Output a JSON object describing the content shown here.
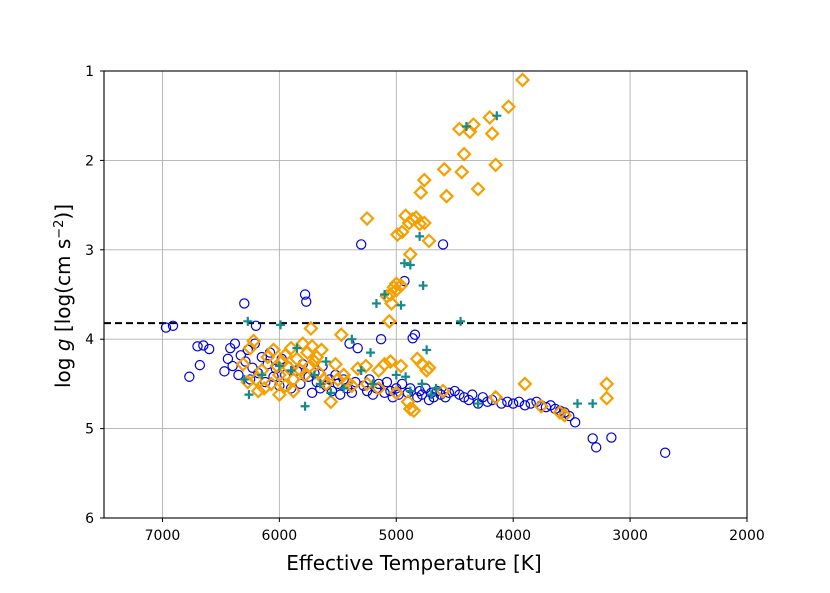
{
  "chart_data": {
    "type": "scatter",
    "xlabel": "Effective Temperature [K]",
    "ylabel": "log g [log(cm s⁻²)]",
    "ylabel_parts": {
      "prefix": "log ",
      "italic": "g",
      "unit_open": " [log(cm s",
      "sup": "−2",
      "unit_close": ")]"
    },
    "xlim": [
      7500,
      2000
    ],
    "ylim": [
      6,
      1
    ],
    "x_inverted": true,
    "y_inverted": true,
    "xticks": [
      7000,
      6000,
      5000,
      4000,
      3000,
      2000
    ],
    "yticks": [
      1,
      2,
      3,
      4,
      5,
      6
    ],
    "grid": true,
    "hline": {
      "y": 3.82,
      "style": "dashed",
      "color": "#000000"
    },
    "series": [
      {
        "name": "circles",
        "marker": "open-circle",
        "color": "#0000dd",
        "points": [
          [
            6970,
            3.87
          ],
          [
            6910,
            3.85
          ],
          [
            6770,
            4.42
          ],
          [
            6700,
            4.08
          ],
          [
            6680,
            4.29
          ],
          [
            6650,
            4.07
          ],
          [
            6600,
            4.11
          ],
          [
            6470,
            4.36
          ],
          [
            6440,
            4.22
          ],
          [
            6420,
            4.1
          ],
          [
            6400,
            4.3
          ],
          [
            6380,
            4.05
          ],
          [
            6350,
            4.4
          ],
          [
            6330,
            4.18
          ],
          [
            6300,
            3.6
          ],
          [
            6290,
            4.25
          ],
          [
            6270,
            4.12
          ],
          [
            6250,
            4.45
          ],
          [
            6230,
            4.32
          ],
          [
            6210,
            4.05
          ],
          [
            6200,
            3.85
          ],
          [
            6180,
            4.38
          ],
          [
            6150,
            4.2
          ],
          [
            6120,
            4.48
          ],
          [
            6100,
            4.28
          ],
          [
            6080,
            4.15
          ],
          [
            6050,
            4.42
          ],
          [
            6030,
            4.33
          ],
          [
            6000,
            4.52
          ],
          [
            5980,
            4.22
          ],
          [
            5950,
            4.4
          ],
          [
            5930,
            4.3
          ],
          [
            5900,
            4.55
          ],
          [
            5880,
            4.45
          ],
          [
            5850,
            4.35
          ],
          [
            5820,
            4.5
          ],
          [
            5800,
            4.28
          ],
          [
            5780,
            3.5
          ],
          [
            5770,
            3.58
          ],
          [
            5750,
            4.42
          ],
          [
            5720,
            4.6
          ],
          [
            5700,
            4.38
          ],
          [
            5680,
            4.48
          ],
          [
            5650,
            4.55
          ],
          [
            5630,
            4.3
          ],
          [
            5600,
            4.52
          ],
          [
            5570,
            4.45
          ],
          [
            5550,
            4.58
          ],
          [
            5520,
            4.4
          ],
          [
            5500,
            4.5
          ],
          [
            5480,
            4.62
          ],
          [
            5450,
            4.45
          ],
          [
            5420,
            4.55
          ],
          [
            5400,
            4.05
          ],
          [
            5380,
            4.6
          ],
          [
            5350,
            4.48
          ],
          [
            5330,
            4.1
          ],
          [
            5300,
            2.94
          ],
          [
            5280,
            4.52
          ],
          [
            5250,
            4.58
          ],
          [
            5230,
            4.45
          ],
          [
            5200,
            4.62
          ],
          [
            5170,
            4.55
          ],
          [
            5150,
            4.5
          ],
          [
            5130,
            4.0
          ],
          [
            5100,
            4.6
          ],
          [
            5080,
            4.48
          ],
          [
            5050,
            4.58
          ],
          [
            5030,
            4.65
          ],
          [
            5000,
            4.55
          ],
          [
            4980,
            4.62
          ],
          [
            4950,
            4.5
          ],
          [
            4930,
            3.35
          ],
          [
            4900,
            4.6
          ],
          [
            4880,
            4.55
          ],
          [
            4860,
            3.99
          ],
          [
            4840,
            3.95
          ],
          [
            4820,
            4.65
          ],
          [
            4800,
            4.58
          ],
          [
            4780,
            4.62
          ],
          [
            4750,
            4.55
          ],
          [
            4720,
            4.68
          ],
          [
            4700,
            4.6
          ],
          [
            4680,
            4.65
          ],
          [
            4650,
            4.58
          ],
          [
            4620,
            4.62
          ],
          [
            4600,
            2.94
          ],
          [
            4580,
            4.65
          ],
          [
            4550,
            4.6
          ],
          [
            4500,
            4.58
          ],
          [
            4460,
            4.62
          ],
          [
            4420,
            4.65
          ],
          [
            4380,
            4.68
          ],
          [
            4350,
            4.62
          ],
          [
            4300,
            4.72
          ],
          [
            4260,
            4.65
          ],
          [
            4220,
            4.7
          ],
          [
            4180,
            4.68
          ],
          [
            4150,
            4.65
          ],
          [
            4100,
            4.72
          ],
          [
            4050,
            4.7
          ],
          [
            4000,
            4.72
          ],
          [
            3950,
            4.7
          ],
          [
            3900,
            4.74
          ],
          [
            3850,
            4.72
          ],
          [
            3800,
            4.7
          ],
          [
            3760,
            4.74
          ],
          [
            3720,
            4.76
          ],
          [
            3680,
            4.74
          ],
          [
            3640,
            4.78
          ],
          [
            3600,
            4.8
          ],
          [
            3560,
            4.82
          ],
          [
            3520,
            4.86
          ],
          [
            3470,
            4.93
          ],
          [
            3320,
            5.11
          ],
          [
            3290,
            5.21
          ],
          [
            3160,
            5.1
          ],
          [
            2700,
            5.27
          ]
        ]
      },
      {
        "name": "diamonds",
        "marker": "open-diamond",
        "color": "#f5a000",
        "points": [
          [
            3920,
            1.1
          ],
          [
            4040,
            1.4
          ],
          [
            4200,
            1.52
          ],
          [
            4180,
            1.7
          ],
          [
            4150,
            2.05
          ],
          [
            4340,
            1.6
          ],
          [
            4370,
            1.68
          ],
          [
            4460,
            1.65
          ],
          [
            4420,
            1.93
          ],
          [
            4300,
            2.32
          ],
          [
            4440,
            2.13
          ],
          [
            4590,
            2.1
          ],
          [
            4570,
            2.4
          ],
          [
            4760,
            2.22
          ],
          [
            4790,
            2.36
          ],
          [
            5250,
            2.65
          ],
          [
            4920,
            2.62
          ],
          [
            4890,
            2.7
          ],
          [
            4860,
            2.66
          ],
          [
            4830,
            2.64
          ],
          [
            4800,
            2.71
          ],
          [
            4760,
            2.7
          ],
          [
            4720,
            2.9
          ],
          [
            4950,
            2.8
          ],
          [
            4990,
            2.83
          ],
          [
            4880,
            3.05
          ],
          [
            4960,
            3.4
          ],
          [
            5000,
            3.45
          ],
          [
            5050,
            3.5
          ],
          [
            5080,
            3.52
          ],
          [
            5020,
            3.42
          ],
          [
            5040,
            3.6
          ],
          [
            5060,
            3.8
          ],
          [
            5000,
            3.38
          ],
          [
            5730,
            3.88
          ],
          [
            5470,
            3.95
          ],
          [
            5330,
            4.33
          ],
          [
            5260,
            4.3
          ],
          [
            5100,
            4.28
          ],
          [
            5150,
            4.35
          ],
          [
            5050,
            4.25
          ],
          [
            4960,
            4.3
          ],
          [
            4820,
            4.22
          ],
          [
            4780,
            4.28
          ],
          [
            4740,
            4.35
          ],
          [
            4720,
            4.32
          ],
          [
            5560,
            4.7
          ],
          [
            5500,
            4.45
          ],
          [
            5450,
            4.4
          ],
          [
            5420,
            4.48
          ],
          [
            5380,
            4.52
          ],
          [
            5250,
            4.5
          ],
          [
            5150,
            4.55
          ],
          [
            5000,
            4.6
          ],
          [
            4880,
            4.78
          ],
          [
            4850,
            4.8
          ],
          [
            4900,
            4.7
          ],
          [
            4600,
            4.58
          ],
          [
            4150,
            4.65
          ],
          [
            3900,
            4.5
          ],
          [
            3760,
            4.75
          ],
          [
            3600,
            4.82
          ],
          [
            3560,
            4.85
          ],
          [
            3200,
            4.5
          ],
          [
            3200,
            4.66
          ],
          [
            6310,
            4.28
          ],
          [
            6250,
            4.1
          ],
          [
            6200,
            4.45
          ],
          [
            6150,
            4.35
          ],
          [
            6100,
            4.2
          ],
          [
            6070,
            4.5
          ],
          [
            6050,
            4.12
          ],
          [
            6020,
            4.3
          ],
          [
            6000,
            4.4
          ],
          [
            5980,
            4.25
          ],
          [
            5950,
            4.18
          ],
          [
            5920,
            4.32
          ],
          [
            5900,
            4.1
          ],
          [
            5880,
            4.45
          ],
          [
            5850,
            4.22
          ],
          [
            5820,
            4.35
          ],
          [
            5800,
            4.05
          ],
          [
            5780,
            4.4
          ],
          [
            5760,
            4.15
          ],
          [
            5740,
            4.3
          ],
          [
            5720,
            4.08
          ],
          [
            5700,
            4.25
          ],
          [
            5680,
            4.2
          ],
          [
            5660,
            4.38
          ],
          [
            5640,
            4.12
          ],
          [
            5620,
            4.45
          ],
          [
            6180,
            4.58
          ],
          [
            6130,
            4.55
          ],
          [
            6000,
            4.62
          ],
          [
            5880,
            4.58
          ],
          [
            5950,
            4.52
          ],
          [
            6270,
            4.48
          ],
          [
            6220,
            4.02
          ],
          [
            5520,
            4.28
          ],
          [
            5600,
            4.5
          ]
        ]
      },
      {
        "name": "plus",
        "marker": "plus",
        "color": "#158a8a",
        "points": [
          [
            4140,
            1.5
          ],
          [
            4400,
            1.62
          ],
          [
            4800,
            2.85
          ],
          [
            4930,
            3.15
          ],
          [
            4880,
            3.17
          ],
          [
            4770,
            3.4
          ],
          [
            5170,
            3.6
          ],
          [
            5100,
            3.5
          ],
          [
            4960,
            3.62
          ],
          [
            4450,
            3.8
          ],
          [
            6270,
            3.8
          ],
          [
            5990,
            3.84
          ],
          [
            5380,
            4.0
          ],
          [
            5220,
            4.15
          ],
          [
            4740,
            4.12
          ],
          [
            6300,
            4.45
          ],
          [
            6260,
            4.62
          ],
          [
            5780,
            4.75
          ],
          [
            5560,
            4.6
          ],
          [
            4920,
            4.42
          ],
          [
            4780,
            4.5
          ],
          [
            4660,
            4.55
          ],
          [
            4300,
            4.72
          ],
          [
            3450,
            4.72
          ],
          [
            3320,
            4.72
          ],
          [
            6000,
            4.3
          ],
          [
            5900,
            4.35
          ],
          [
            5700,
            4.4
          ],
          [
            5650,
            4.5
          ],
          [
            5450,
            4.55
          ],
          [
            5200,
            4.5
          ],
          [
            5000,
            4.4
          ],
          [
            4880,
            4.58
          ],
          [
            4700,
            4.62
          ],
          [
            5300,
            4.35
          ],
          [
            6150,
            4.4
          ],
          [
            5850,
            4.1
          ],
          [
            5600,
            4.25
          ]
        ]
      }
    ]
  }
}
